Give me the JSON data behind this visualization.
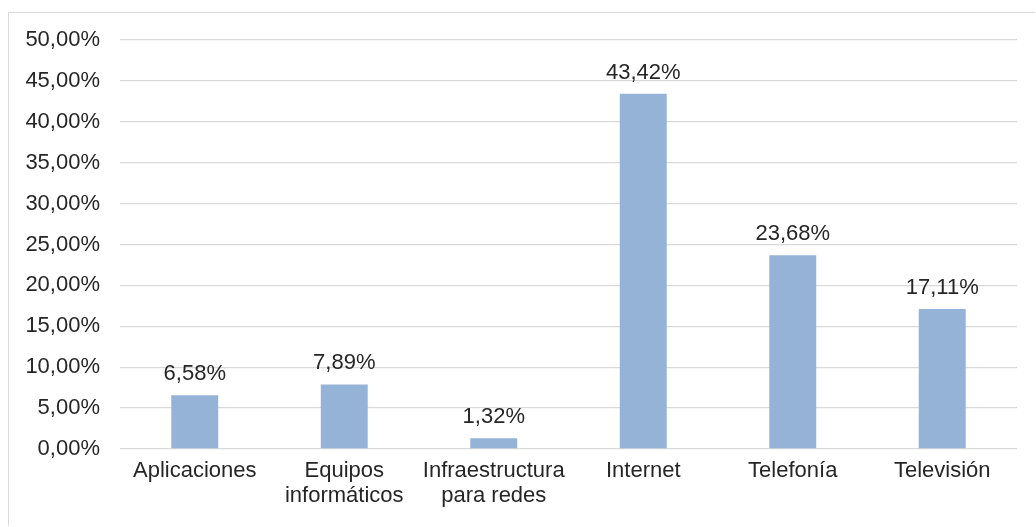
{
  "chart_data": {
    "type": "bar",
    "categories": [
      "Aplicaciones",
      "Equipos informáticos",
      "Infraestructura para redes",
      "Internet",
      "Telefonía",
      "Televisión"
    ],
    "values": [
      6.58,
      7.89,
      1.32,
      43.42,
      23.68,
      17.11
    ],
    "value_labels": [
      "6,58%",
      "7,89%",
      "1,32%",
      "43,42%",
      "23,68%",
      "17,11%"
    ],
    "color": "#95b3d7",
    "ylim": [
      0,
      50
    ],
    "yticks": [
      {
        "value": 0,
        "label": "0,00%"
      },
      {
        "value": 5,
        "label": "5,00%"
      },
      {
        "value": 10,
        "label": "10,00%"
      },
      {
        "value": 15,
        "label": "15,00%"
      },
      {
        "value": 20,
        "label": "20,00%"
      },
      {
        "value": 25,
        "label": "25,00%"
      },
      {
        "value": 30,
        "label": "30,00%"
      },
      {
        "value": 35,
        "label": "35,00%"
      },
      {
        "value": 40,
        "label": "40,00%"
      },
      {
        "value": 45,
        "label": "45,00%"
      },
      {
        "value": 50,
        "label": "50,00%"
      }
    ],
    "grid": "y"
  }
}
